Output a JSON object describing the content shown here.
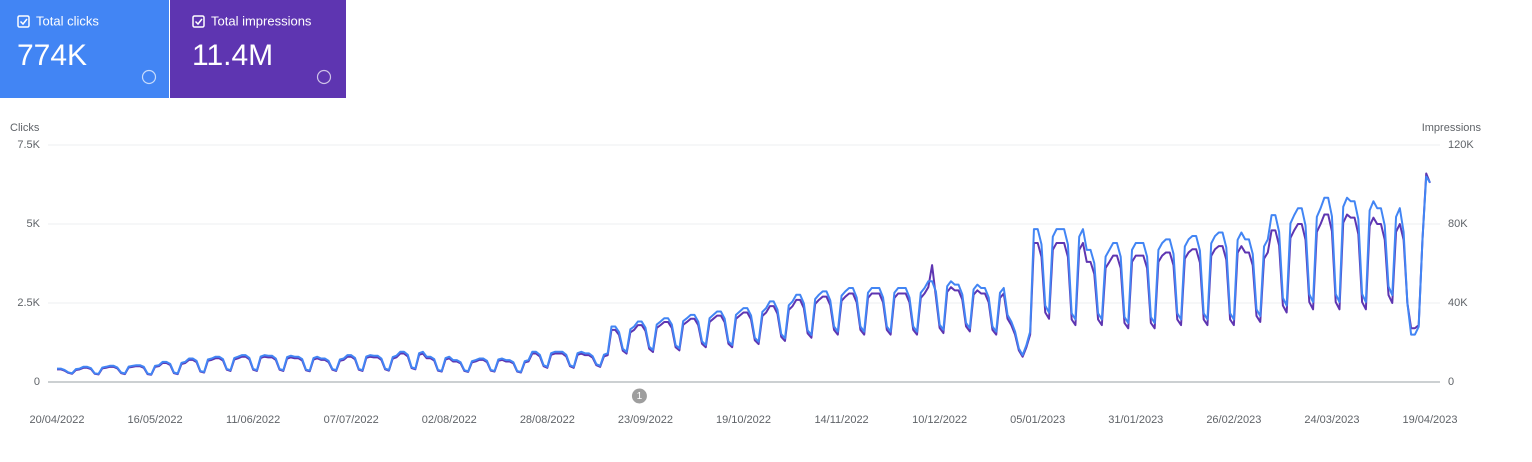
{
  "cards": [
    {
      "label": "Total clicks",
      "value": "774K",
      "color": "#4285f4"
    },
    {
      "label": "Total impressions",
      "value": "11.4M",
      "color": "#5e35b1"
    }
  ],
  "chart_data": {
    "type": "line",
    "y_label": "Clicks",
    "y2_label": "Impressions",
    "ylim": [
      0,
      7500
    ],
    "yticks": [
      0,
      {
        "value": 2500,
        "label": "2.5K"
      },
      {
        "value": 5000,
        "label": "5K"
      },
      {
        "value": 7500,
        "label": "7.5K"
      }
    ],
    "y2lim": [
      0,
      120000
    ],
    "y2ticks": [
      0,
      {
        "value": 40000,
        "label": "40K"
      },
      {
        "value": 80000,
        "label": "80K"
      },
      {
        "value": 120000,
        "label": "120K"
      }
    ],
    "grid": true,
    "annotations": [
      {
        "label": "1",
        "x": "23/09/2022"
      }
    ],
    "categories": [
      "20/04/2022",
      null,
      null,
      null,
      null,
      null,
      null,
      null,
      null,
      null,
      null,
      null,
      null,
      null,
      null,
      null,
      null,
      null,
      null,
      null,
      null,
      null,
      null,
      null,
      null,
      null,
      "16/05/2022",
      null,
      null,
      null,
      null,
      null,
      null,
      null,
      null,
      null,
      null,
      null,
      null,
      null,
      null,
      null,
      null,
      null,
      null,
      null,
      null,
      null,
      null,
      null,
      null,
      null,
      "11/06/2022",
      null,
      null,
      null,
      null,
      null,
      null,
      null,
      null,
      null,
      null,
      null,
      null,
      null,
      null,
      null,
      null,
      null,
      null,
      null,
      null,
      null,
      null,
      null,
      null,
      null,
      "07/07/2022",
      null,
      null,
      null,
      null,
      null,
      null,
      null,
      null,
      null,
      null,
      null,
      null,
      null,
      null,
      null,
      null,
      null,
      null,
      null,
      null,
      null,
      null,
      null,
      null,
      null,
      "02/08/2022",
      null,
      null,
      null,
      null,
      null,
      null,
      null,
      null,
      null,
      null,
      null,
      null,
      null,
      null,
      null,
      null,
      null,
      null,
      null,
      null,
      null,
      null,
      null,
      null,
      null,
      "28/08/2022",
      null,
      null,
      null,
      null,
      null,
      null,
      null,
      null,
      null,
      null,
      null,
      null,
      null,
      null,
      null,
      null,
      null,
      null,
      null,
      null,
      null,
      null,
      null,
      null,
      null,
      "23/09/2022",
      null,
      null,
      null,
      null,
      null,
      null,
      null,
      null,
      null,
      null,
      null,
      null,
      null,
      null,
      null,
      null,
      null,
      null,
      null,
      null,
      null,
      null,
      null,
      null,
      null,
      "19/10/2022",
      null,
      null,
      null,
      null,
      null,
      null,
      null,
      null,
      null,
      null,
      null,
      null,
      null,
      null,
      null,
      null,
      null,
      null,
      null,
      null,
      null,
      null,
      null,
      null,
      null,
      "14/11/2022",
      null,
      null,
      null,
      null,
      null,
      null,
      null,
      null,
      null,
      null,
      null,
      null,
      null,
      null,
      null,
      null,
      null,
      null,
      null,
      null,
      null,
      null,
      null,
      null,
      null,
      "10/12/2022",
      null,
      null,
      null,
      null,
      null,
      null,
      null,
      null,
      null,
      null,
      null,
      null,
      null,
      null,
      null,
      null,
      null,
      null,
      null,
      null,
      null,
      null,
      null,
      null,
      null,
      "05/01/2023",
      null,
      null,
      null,
      null,
      null,
      null,
      null,
      null,
      null,
      null,
      null,
      null,
      null,
      null,
      null,
      null,
      null,
      null,
      null,
      null,
      null,
      null,
      null,
      null,
      null,
      "31/01/2023",
      null,
      null,
      null,
      null,
      null,
      null,
      null,
      null,
      null,
      null,
      null,
      null,
      null,
      null,
      null,
      null,
      null,
      null,
      null,
      null,
      null,
      null,
      null,
      null,
      null,
      "26/02/2023",
      null,
      null,
      null,
      null,
      null,
      null,
      null,
      null,
      null,
      null,
      null,
      null,
      null,
      null,
      null,
      null,
      null,
      null,
      null,
      null,
      null,
      null,
      null,
      null,
      null,
      "24/03/2023",
      null,
      null,
      null,
      null,
      null,
      null,
      null,
      null,
      null,
      null,
      null,
      null,
      null,
      null,
      null,
      null,
      null,
      null,
      null,
      null,
      null,
      null,
      null,
      null,
      null,
      "19/04/2023"
    ],
    "series": [
      {
        "name": "Clicks",
        "color": "#5e35b1",
        "axis": "y",
        "values": [
          400,
          400,
          360,
          290,
          260,
          380,
          400,
          450,
          450,
          410,
          260,
          240,
          430,
          450,
          480,
          480,
          430,
          280,
          250,
          460,
          480,
          500,
          500,
          450,
          250,
          230,
          480,
          500,
          600,
          600,
          540,
          280,
          250,
          570,
          600,
          700,
          700,
          630,
          330,
          300,
          670,
          700,
          750,
          750,
          680,
          390,
          350,
          710,
          750,
          800,
          800,
          720,
          390,
          350,
          760,
          800,
          780,
          780,
          700,
          390,
          350,
          740,
          780,
          750,
          750,
          680,
          370,
          340,
          710,
          750,
          700,
          700,
          630,
          390,
          350,
          670,
          700,
          800,
          800,
          720,
          390,
          350,
          760,
          800,
          780,
          780,
          700,
          400,
          360,
          740,
          780,
          900,
          900,
          810,
          440,
          400,
          860,
          900,
          750,
          750,
          680,
          360,
          330,
          710,
          750,
          650,
          650,
          590,
          350,
          320,
          620,
          650,
          700,
          700,
          630,
          360,
          330,
          670,
          700,
          650,
          650,
          590,
          330,
          300,
          620,
          650,
          900,
          900,
          810,
          500,
          450,
          860,
          900,
          900,
          900,
          810,
          500,
          450,
          860,
          900,
          850,
          850,
          770,
          530,
          480,
          810,
          850,
          1650,
          1650,
          1490,
          990,
          900,
          1570,
          1650,
          1800,
          1800,
          1620,
          1050,
          950,
          1710,
          1800,
          1900,
          1900,
          1710,
          1100,
          1000,
          1810,
          1900,
          2000,
          2000,
          1800,
          1210,
          1100,
          1900,
          2000,
          2100,
          2100,
          1890,
          1210,
          1100,
          2000,
          2100,
          2200,
          2200,
          1980,
          1320,
          1200,
          2090,
          2200,
          2400,
          2400,
          2160,
          1430,
          1300,
          2280,
          2400,
          2600,
          2600,
          2340,
          1540,
          1400,
          2470,
          2600,
          2700,
          2700,
          2430,
          1650,
          1500,
          2570,
          2700,
          2800,
          2800,
          2520,
          1650,
          1500,
          2660,
          2800,
          2800,
          2800,
          2520,
          1650,
          1500,
          2660,
          2800,
          2800,
          2800,
          2520,
          1650,
          1500,
          2660,
          2800,
          3000,
          3700,
          2700,
          1710,
          1550,
          2850,
          3000,
          2900,
          2900,
          2610,
          1760,
          1600,
          2760,
          2900,
          2800,
          2800,
          2520,
          1650,
          1500,
          2660,
          2800,
          2000,
          1800,
          1500,
          1000,
          800,
          1100,
          1500,
          4400,
          4400,
          3960,
          2200,
          2000,
          4180,
          4400,
          4400,
          4400,
          3960,
          1980,
          1800,
          4180,
          4400,
          3800,
          3800,
          3420,
          1980,
          1800,
          3610,
          3800,
          4000,
          4000,
          3600,
          1870,
          1700,
          3800,
          4000,
          4000,
          4000,
          3600,
          1870,
          1700,
          3800,
          4000,
          4100,
          4100,
          3690,
          1980,
          1800,
          3900,
          4100,
          4200,
          4200,
          3780,
          1980,
          1800,
          3990,
          4200,
          4300,
          4300,
          3870,
          1980,
          1800,
          4090,
          4300,
          4100,
          4100,
          3690,
          2090,
          1900,
          3900,
          4100,
          4800,
          4800,
          4320,
          2420,
          2200,
          4560,
          4800,
          5000,
          5000,
          4500,
          2530,
          2300,
          4750,
          5000,
          5300,
          5300,
          4770,
          2530,
          2300,
          5040,
          5300,
          5200,
          5200,
          4680,
          2530,
          2300,
          4940,
          5200,
          5000,
          5000,
          4500,
          2750,
          2500,
          4750,
          5000,
          4500,
          2500,
          1700,
          1700,
          1800,
          4500,
          6600,
          6300
        ]
      },
      {
        "name": "Impressions",
        "color": "#4285f4",
        "axis": "y2",
        "values": [
          6800,
          6800,
          6100,
          4900,
          4400,
          6500,
          6800,
          7700,
          7700,
          7000,
          4400,
          4100,
          7300,
          7700,
          8200,
          8200,
          7300,
          4800,
          4300,
          7800,
          8200,
          8500,
          8500,
          7700,
          4300,
          3900,
          8200,
          8500,
          10200,
          10200,
          9200,
          4800,
          4300,
          9700,
          10200,
          11900,
          11900,
          10700,
          5600,
          5100,
          11400,
          11900,
          12800,
          12800,
          11600,
          6600,
          6000,
          12100,
          12800,
          13600,
          13600,
          12200,
          6600,
          6000,
          12900,
          13600,
          13300,
          13300,
          11900,
          6600,
          6000,
          12600,
          13300,
          12800,
          12800,
          11600,
          6300,
          5800,
          12100,
          12800,
          11900,
          11900,
          10700,
          6600,
          6000,
          11400,
          11900,
          13600,
          13600,
          12200,
          6600,
          6000,
          12900,
          13600,
          13300,
          13300,
          11900,
          6800,
          6100,
          12600,
          13300,
          15300,
          15300,
          13800,
          7500,
          6800,
          14600,
          15300,
          12800,
          12800,
          11600,
          6100,
          5600,
          12100,
          12800,
          11100,
          11100,
          10000,
          6000,
          5400,
          10500,
          11100,
          11900,
          11900,
          10700,
          6100,
          5600,
          11400,
          11900,
          11100,
          11100,
          10000,
          5600,
          5100,
          10500,
          11100,
          15300,
          15300,
          13800,
          8500,
          7700,
          14600,
          15300,
          15300,
          15300,
          13800,
          8500,
          7700,
          14600,
          15300,
          14500,
          14500,
          13100,
          9000,
          8200,
          13800,
          14500,
          28100,
          28100,
          25300,
          16800,
          15300,
          26700,
          28100,
          30600,
          30600,
          27500,
          17900,
          16200,
          29100,
          30600,
          32300,
          32300,
          29100,
          18700,
          17000,
          30800,
          32300,
          34000,
          34000,
          30600,
          20600,
          18700,
          32300,
          34000,
          35700,
          35700,
          32100,
          20600,
          18700,
          34000,
          35700,
          37400,
          37400,
          33700,
          22400,
          20400,
          35500,
          37400,
          40800,
          40800,
          36700,
          24300,
          22100,
          38800,
          40800,
          44200,
          44200,
          39800,
          26200,
          23800,
          42000,
          44200,
          45900,
          45900,
          41300,
          28100,
          25500,
          43700,
          45900,
          47600,
          47600,
          42800,
          28100,
          25500,
          45200,
          47600,
          47600,
          47600,
          42800,
          28100,
          25500,
          45200,
          47600,
          47600,
          47600,
          42800,
          28100,
          25500,
          45200,
          47600,
          51000,
          51000,
          45900,
          29100,
          26400,
          48500,
          51000,
          49300,
          49300,
          44400,
          29900,
          27200,
          46900,
          49300,
          47600,
          47600,
          42800,
          28100,
          25500,
          45200,
          47600,
          34000,
          30600,
          25500,
          17000,
          13600,
          18700,
          25500,
          77400,
          77400,
          69700,
          38700,
          35200,
          73600,
          77400,
          77400,
          77400,
          69700,
          34800,
          31700,
          73600,
          77400,
          66900,
          66900,
          60200,
          34800,
          31700,
          63500,
          66900,
          70400,
          70400,
          63400,
          32900,
          29900,
          66900,
          70400,
          70400,
          70400,
          63400,
          32900,
          29900,
          66900,
          70400,
          72200,
          72200,
          64900,
          34800,
          31700,
          68600,
          72200,
          73900,
          73900,
          66500,
          34800,
          31700,
          70200,
          73900,
          75700,
          75700,
          68100,
          34800,
          31700,
          72000,
          75700,
          72200,
          72200,
          64900,
          36800,
          33400,
          68600,
          72200,
          84500,
          84500,
          76000,
          42600,
          38700,
          80300,
          84500,
          88000,
          88000,
          79200,
          44500,
          40500,
          83600,
          88000,
          93300,
          93300,
          83900,
          44500,
          40500,
          88700,
          93300,
          91500,
          91500,
          82400,
          44500,
          40500,
          86900,
          91500,
          88000,
          88000,
          79200,
          48400,
          44000,
          83600,
          88000,
          76000,
          40000,
          24000,
          24000,
          28000,
          72000,
          104000,
          101000
        ]
      }
    ]
  }
}
